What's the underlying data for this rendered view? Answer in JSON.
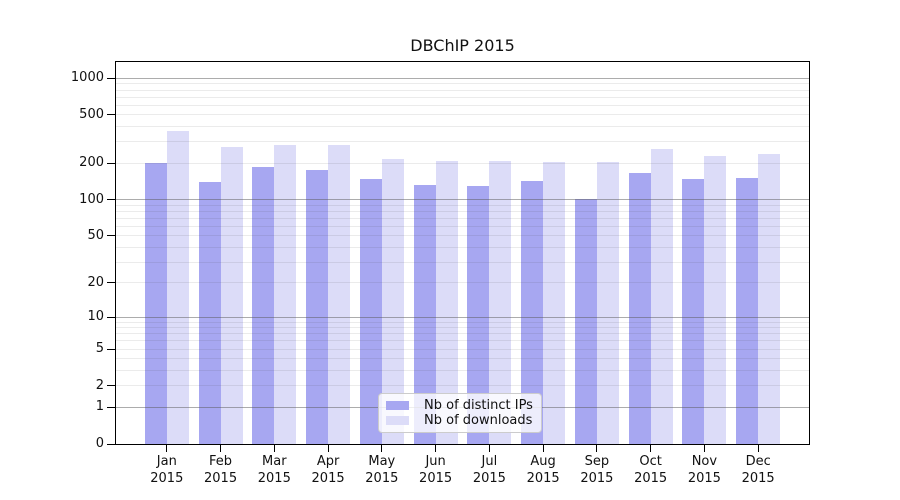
{
  "chart_data": {
    "type": "bar",
    "title": "DBChIP 2015",
    "categories": [
      "Jan 2015",
      "Feb 2015",
      "Mar 2015",
      "Apr 2015",
      "May 2015",
      "Jun 2015",
      "Jul 2015",
      "Aug 2015",
      "Sep 2015",
      "Oct 2015",
      "Nov 2015",
      "Dec 2015"
    ],
    "series": [
      {
        "name": "Nb of distinct IPs",
        "color": "#a7a7f1",
        "values": [
          200,
          141,
          186,
          176,
          148,
          133,
          130,
          143,
          102,
          165,
          148,
          150
        ]
      },
      {
        "name": "Nb of downloads",
        "color": "#dcdcf8",
        "values": [
          370,
          273,
          281,
          283,
          215,
          210,
          207,
          203,
          203,
          264,
          228,
          238
        ]
      }
    ],
    "y_ticks": [
      0,
      1,
      2,
      5,
      10,
      20,
      50,
      100,
      200,
      500,
      1000
    ],
    "y_scale": "log10(value+1)",
    "y_axis_max": 1393,
    "grid": true,
    "legend": {
      "position": "inside-bottom-center"
    },
    "colors": {
      "axis": "#000000",
      "major_grid": "#aaaaaa",
      "minor_grid": "#e8e8e8",
      "background": "#ffffff"
    }
  }
}
